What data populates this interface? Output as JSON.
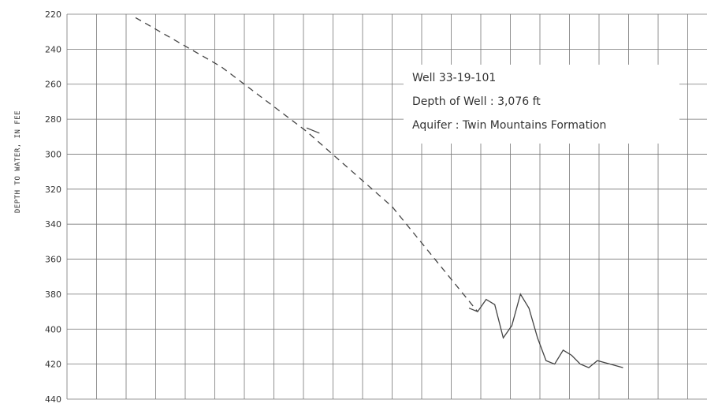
{
  "chart_data": {
    "type": "line",
    "title": "",
    "xlabel": "",
    "ylabel": "DEPTH TO WATER, IN FEE",
    "y_inverted": true,
    "ylim": [
      440,
      220
    ],
    "yticks": [
      220,
      240,
      260,
      280,
      300,
      320,
      340,
      360,
      380,
      400,
      420,
      440
    ],
    "grid": true,
    "annotations": [
      "Well 33-19-101",
      "Depth of Well : 3,076 ft",
      "Aquifer : Twin Mountains Formation"
    ],
    "series": [
      {
        "style": "dashed",
        "x": [
          0,
          1,
          2,
          3,
          4
        ],
        "y": [
          222,
          250,
          287,
          330,
          390
        ]
      },
      {
        "style": "solid",
        "x": [
          2,
          2.15
        ],
        "y": [
          285,
          288
        ]
      },
      {
        "style": "solid",
        "x": [
          3.9,
          4.0,
          4.1,
          4.2,
          4.3,
          4.4,
          4.5,
          4.6,
          4.7,
          4.8,
          4.9,
          5.0,
          5.1,
          5.2,
          5.3,
          5.4,
          5.55,
          5.7
        ],
        "y": [
          388,
          390,
          383,
          386,
          405,
          398,
          380,
          388,
          405,
          418,
          420,
          412,
          415,
          420,
          422,
          418,
          420,
          422
        ]
      }
    ]
  }
}
